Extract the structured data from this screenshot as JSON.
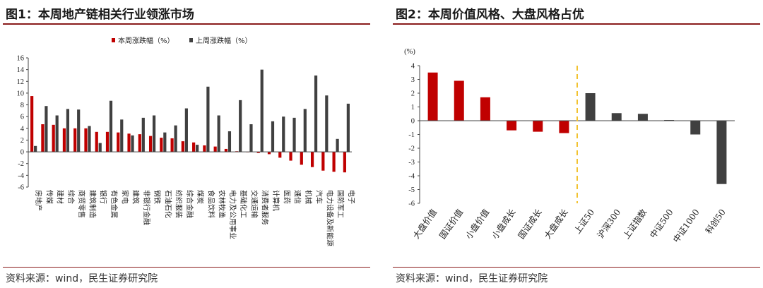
{
  "left": {
    "title": "图1：本周地产链相关行业领涨市场",
    "source": "资料来源：wind，民生证券研究院"
  },
  "right": {
    "title": "图2：本周价值风格、大盘风格占优",
    "source": "资料来源：wind，民生证券研究院"
  },
  "chart_data": [
    {
      "type": "bar",
      "title": "图1：本周地产链相关行业领涨市场",
      "categories": [
        "房地产",
        "传媒",
        "建材",
        "综合",
        "商贸零售",
        "建筑制造",
        "银行",
        "有色金属",
        "家电",
        "建筑",
        "非银行金融",
        "钢铁",
        "石油石化",
        "纺织服装",
        "综合金融",
        "煤炭",
        "食品饮料",
        "农林牧渔",
        "电力及公用事业",
        "基础化工",
        "交通运输",
        "消费者服务",
        "计算机",
        "医药",
        "通信",
        "机械",
        "汽车",
        "电力设备及新能源",
        "国防军工",
        "电子"
      ],
      "series": [
        {
          "name": "本周涨跌幅（%）",
          "color": "#c00000",
          "values": [
            9.5,
            4.7,
            4.6,
            4.0,
            4.0,
            4.0,
            3.4,
            3.4,
            3.3,
            3.1,
            3.0,
            2.7,
            2.4,
            2.3,
            1.8,
            1.6,
            1.1,
            0.9,
            0.5,
            0.1,
            0.0,
            -0.2,
            -0.4,
            -1.0,
            -1.5,
            -2.2,
            -2.6,
            -3.2,
            -3.4,
            -3.5
          ]
        },
        {
          "name": "上周涨跌幅（%）",
          "color": "#404040",
          "values": [
            1.0,
            7.8,
            6.2,
            7.3,
            7.2,
            4.4,
            1.5,
            8.7,
            5.5,
            2.8,
            5.8,
            6.2,
            3.3,
            4.5,
            7.4,
            1.2,
            11.1,
            6.2,
            3.5,
            8.8,
            4.7,
            14.0,
            5.2,
            6.0,
            5.8,
            7.3,
            13.0,
            9.6,
            2.2,
            8.2
          ]
        }
      ],
      "ylim": [
        -6,
        16
      ],
      "yticks": [
        "16",
        "14",
        "12",
        "10",
        "8",
        "6",
        "4",
        "2",
        "0",
        "-2",
        "-4",
        "-6"
      ],
      "legend": "top-center"
    },
    {
      "type": "bar",
      "title": "图2：本周价值风格、大盘风格占优",
      "ylabel": "(%)",
      "categories": [
        "大盘价值",
        "国证价值",
        "小盘价值",
        "小盘成长",
        "国证成长",
        "大盘成长",
        "上证50",
        "沪深300",
        "上证指数",
        "中证500",
        "中证1000",
        "科创50"
      ],
      "values": [
        3.5,
        2.9,
        1.7,
        -0.7,
        -0.8,
        -0.9,
        2.0,
        0.55,
        0.5,
        0.05,
        -1.0,
        -4.6
      ],
      "colors": [
        "#c00000",
        "#c00000",
        "#c00000",
        "#c00000",
        "#c00000",
        "#c00000",
        "#404040",
        "#404040",
        "#404040",
        "#404040",
        "#404040",
        "#404040"
      ],
      "ylim": [
        -6,
        4
      ],
      "yticks": [
        "4",
        "3",
        "2",
        "1",
        "0",
        "-1",
        "-2",
        "-3",
        "-4",
        "-5",
        "-6"
      ],
      "divider_color": "#f2c230"
    }
  ]
}
